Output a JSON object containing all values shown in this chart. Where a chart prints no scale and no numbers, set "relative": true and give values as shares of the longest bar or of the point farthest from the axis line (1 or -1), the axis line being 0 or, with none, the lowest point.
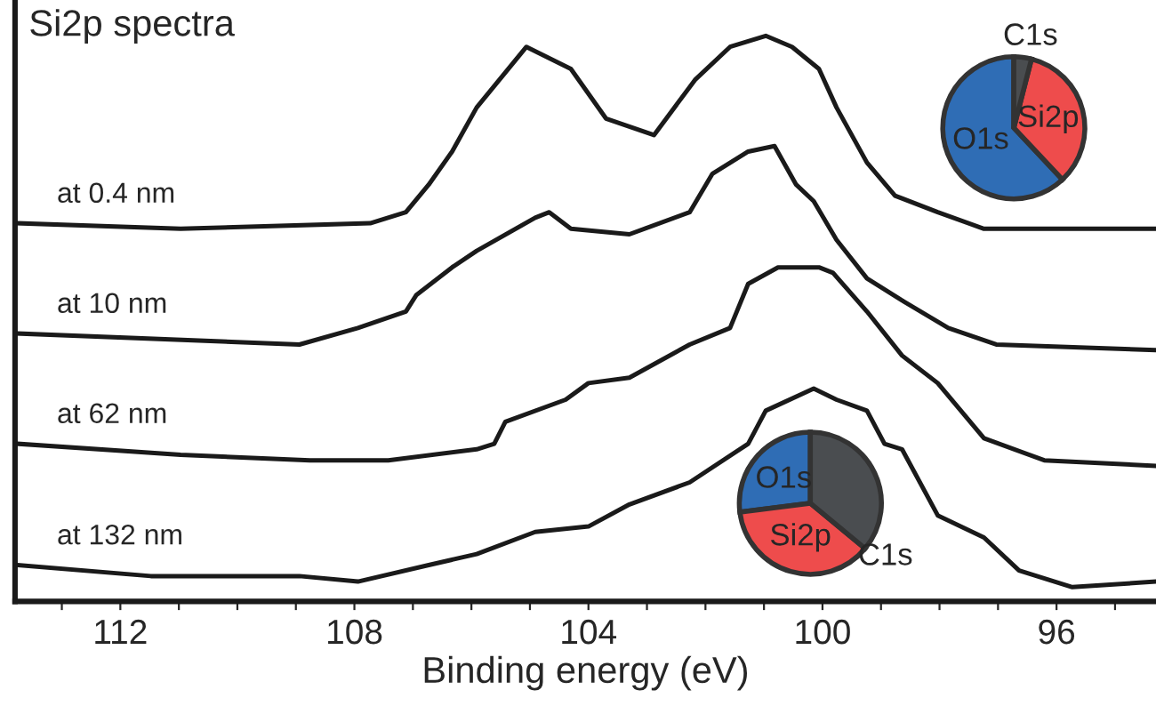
{
  "chart_data": [
    {
      "type": "line",
      "title": "Si2p spectra",
      "xlabel": "Binding energy (eV)",
      "relative": true,
      "xlim": [
        113.8,
        94.3
      ],
      "xticks": [
        {
          "value": 113,
          "label": null
        },
        {
          "value": 112,
          "label": "112"
        },
        {
          "value": 111,
          "label": null
        },
        {
          "value": 110,
          "label": null
        },
        {
          "value": 109,
          "label": null
        },
        {
          "value": 108,
          "label": "108"
        },
        {
          "value": 107,
          "label": null
        },
        {
          "value": 106,
          "label": null
        },
        {
          "value": 105,
          "label": null
        },
        {
          "value": 104,
          "label": "104"
        },
        {
          "value": 103,
          "label": null
        },
        {
          "value": 102,
          "label": null
        },
        {
          "value": 101,
          "label": null
        },
        {
          "value": 100,
          "label": "100"
        },
        {
          "value": 99,
          "label": null
        },
        {
          "value": 98,
          "label": null
        },
        {
          "value": 97,
          "label": null
        },
        {
          "value": 96,
          "label": "96"
        },
        {
          "value": 95,
          "label": null
        }
      ],
      "tick_labels": "x",
      "grid": false,
      "legend": false,
      "marker": "none",
      "line_style": "solid",
      "series": [
        {
          "name": "at 0.4 nm",
          "color": "#1a1a1a",
          "x": [
            113.76,
            110.97,
            107.73,
            107.12,
            106.73,
            106.33,
            105.91,
            105.06,
            104.3,
            103.7,
            102.88,
            102.18,
            101.58,
            100.97,
            100.52,
            100.06,
            99.76,
            99.24,
            98.76,
            98.03,
            97.24,
            94.3
          ],
          "values": [
            0.66,
            0.65,
            0.66,
            0.68,
            0.73,
            0.79,
            0.87,
            0.98,
            0.94,
            0.85,
            0.82,
            0.92,
            0.98,
            1.0,
            0.98,
            0.94,
            0.87,
            0.77,
            0.71,
            0.68,
            0.65,
            0.65
          ]
        },
        {
          "name": "at 10 nm",
          "color": "#1a1a1a",
          "x": [
            113.76,
            108.94,
            107.94,
            107.12,
            106.94,
            106.33,
            105.91,
            104.91,
            104.67,
            104.3,
            103.3,
            102.27,
            101.88,
            101.27,
            100.82,
            100.45,
            100.15,
            99.76,
            99.24,
            98.64,
            97.85,
            97.03,
            94.3
          ],
          "values": [
            0.46,
            0.44,
            0.47,
            0.5,
            0.53,
            0.58,
            0.61,
            0.67,
            0.68,
            0.65,
            0.64,
            0.68,
            0.75,
            0.79,
            0.8,
            0.73,
            0.7,
            0.63,
            0.56,
            0.52,
            0.47,
            0.44,
            0.43
          ]
        },
        {
          "name": "at 62 nm",
          "color": "#1a1a1a",
          "x": [
            113.76,
            110.97,
            108.76,
            107.42,
            105.91,
            105.61,
            105.42,
            104.39,
            104.0,
            103.3,
            102.27,
            101.58,
            101.27,
            100.76,
            100.06,
            99.82,
            99.24,
            98.64,
            98.03,
            97.24,
            96.21,
            94.3
          ],
          "values": [
            0.26,
            0.24,
            0.23,
            0.23,
            0.25,
            0.26,
            0.3,
            0.34,
            0.37,
            0.38,
            0.44,
            0.47,
            0.55,
            0.58,
            0.58,
            0.57,
            0.5,
            0.42,
            0.37,
            0.27,
            0.23,
            0.22
          ]
        },
        {
          "name": "at 132 nm",
          "color": "#1a1a1a",
          "x": [
            113.76,
            111.48,
            108.94,
            107.94,
            106.73,
            105.91,
            104.91,
            104.0,
            103.3,
            102.27,
            101.27,
            100.97,
            100.15,
            99.76,
            99.24,
            98.94,
            98.64,
            98.03,
            97.24,
            96.64,
            95.73,
            94.3
          ],
          "values": [
            0.04,
            0.02,
            0.02,
            0.01,
            0.04,
            0.06,
            0.1,
            0.11,
            0.15,
            0.19,
            0.26,
            0.32,
            0.36,
            0.34,
            0.32,
            0.26,
            0.25,
            0.13,
            0.09,
            0.03,
            0.0,
            0.01
          ]
        }
      ]
    },
    {
      "type": "pie",
      "categories": [
        "O1s",
        "Si2p",
        "C1s"
      ],
      "values": [
        62,
        34,
        4
      ],
      "colors": [
        "#2f6db5",
        "#ee4c4c",
        "#4a4d50"
      ]
    },
    {
      "type": "pie",
      "categories": [
        "O1s",
        "Si2p",
        "C1s"
      ],
      "values": [
        27,
        37,
        36
      ],
      "colors": [
        "#2f6db5",
        "#ee4c4c",
        "#4a4d50"
      ]
    }
  ]
}
